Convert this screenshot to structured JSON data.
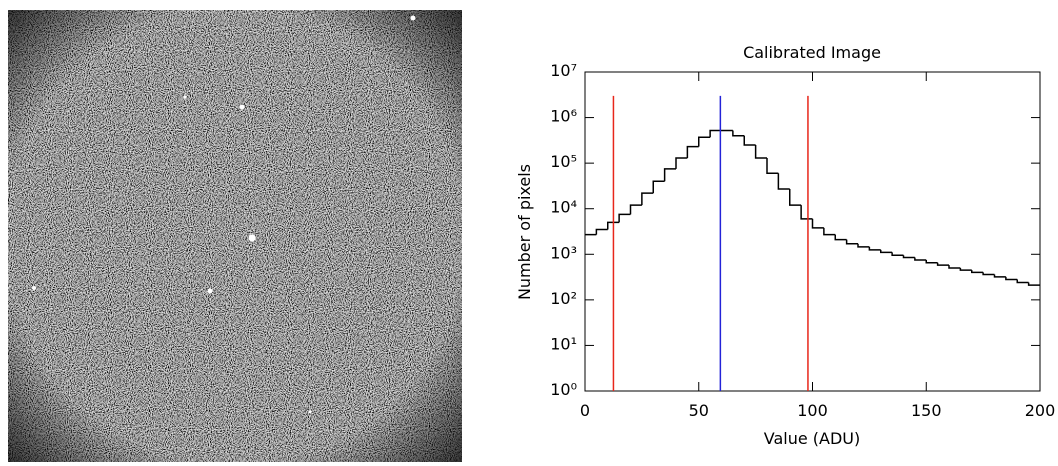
{
  "chart_data": {
    "type": "histogram",
    "title": "Calibrated Image",
    "xlabel": "Value (ADU)",
    "ylabel": "Number of pixels",
    "bins": [
      0,
      5,
      10,
      15,
      20,
      25,
      30,
      35,
      40,
      45,
      50,
      55,
      60,
      65,
      70,
      75,
      80,
      85,
      90,
      95,
      100,
      105,
      110,
      115,
      120,
      125,
      130,
      135,
      140,
      145,
      150,
      155,
      160,
      165,
      170,
      175,
      180,
      185,
      190,
      195,
      200
    ],
    "counts": [
      2700,
      3500,
      5000,
      7500,
      12000,
      22000,
      40000,
      75000,
      130000,
      230000,
      370000,
      520000,
      520000,
      400000,
      250000,
      130000,
      60000,
      27000,
      12000,
      6000,
      3800,
      2700,
      2100,
      1700,
      1450,
      1250,
      1100,
      950,
      850,
      750,
      650,
      580,
      500,
      450,
      400,
      360,
      320,
      280,
      240,
      210
    ],
    "color": "#000000",
    "markers": [
      {
        "x": 12.5,
        "color": "#e8261a"
      },
      {
        "x": 59.5,
        "color": "#2323d8"
      },
      {
        "x": 98,
        "color": "#e8261a"
      }
    ],
    "marker_top": 3000000,
    "xlim": [
      0,
      200
    ],
    "xticks": [
      0,
      50,
      100,
      150,
      200
    ],
    "ylim": [
      1,
      10000000
    ],
    "log_y": true,
    "yticks": [
      {
        "value": 1,
        "label": "10⁰"
      },
      {
        "value": 10,
        "label": "10¹"
      },
      {
        "value": 100,
        "label": "10²"
      },
      {
        "value": 1000,
        "label": "10³"
      },
      {
        "value": 10000,
        "label": "10⁴"
      },
      {
        "value": 100000,
        "label": "10⁵"
      },
      {
        "value": 1000000,
        "label": "10⁶"
      },
      {
        "value": 10000000,
        "label": "10⁷"
      }
    ]
  }
}
